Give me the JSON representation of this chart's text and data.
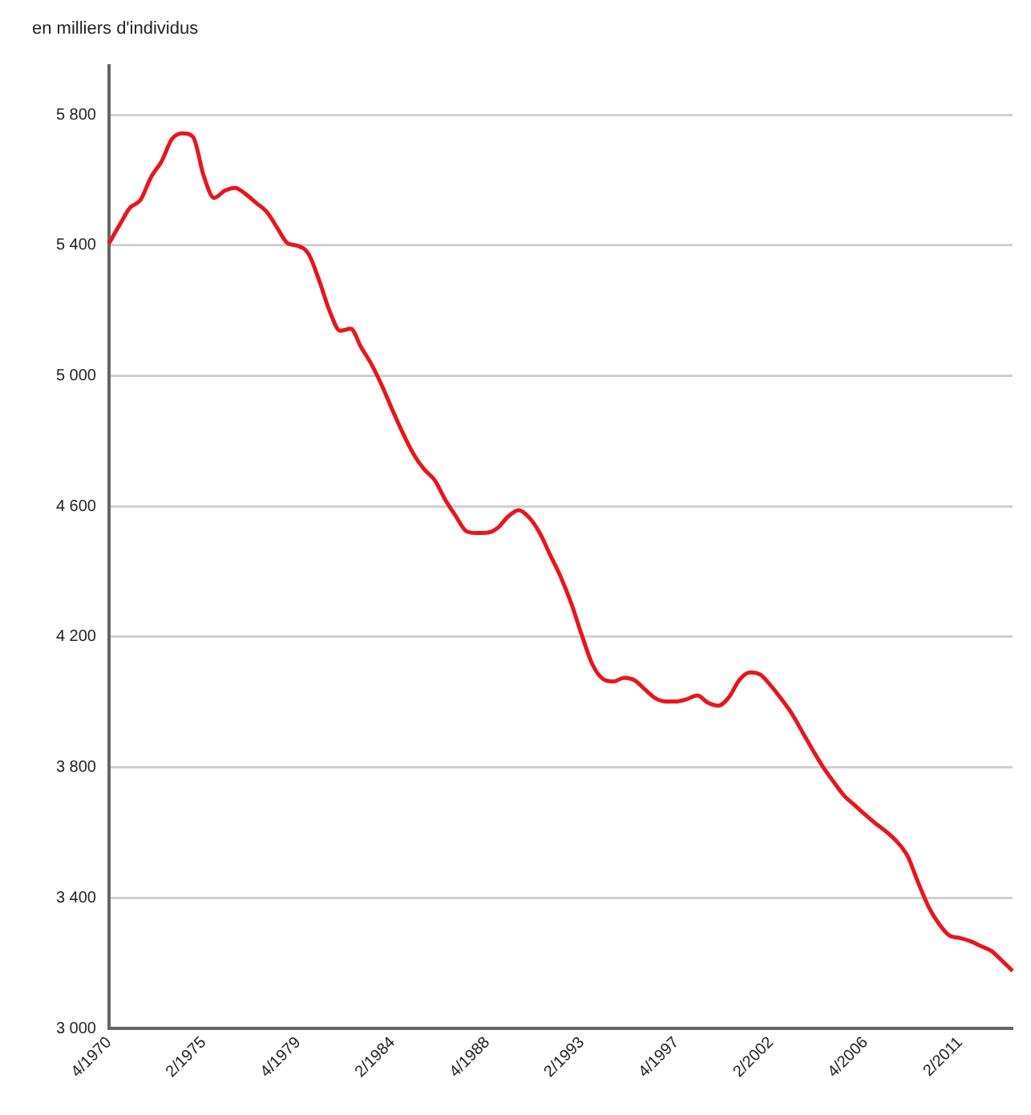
{
  "chart_data": {
    "type": "line",
    "title": "en milliers d'individus",
    "categories": [
      "4/1970",
      null,
      null,
      null,
      null,
      null,
      null,
      null,
      null,
      "2/1975",
      null,
      null,
      null,
      null,
      null,
      null,
      null,
      null,
      "4/1979",
      null,
      null,
      null,
      null,
      null,
      null,
      null,
      null,
      "2/1984",
      null,
      null,
      null,
      null,
      null,
      null,
      null,
      null,
      "4/1988",
      null,
      null,
      null,
      null,
      null,
      null,
      null,
      null,
      "2/1993",
      null,
      null,
      null,
      null,
      null,
      null,
      null,
      null,
      "4/1997",
      null,
      null,
      null,
      null,
      null,
      null,
      null,
      null,
      "2/2002",
      null,
      null,
      null,
      null,
      null,
      null,
      null,
      null,
      "4/2006",
      null,
      null,
      null,
      null,
      null,
      null,
      null,
      null,
      "2/2011",
      null,
      null,
      null,
      null,
      null
    ],
    "series": [
      {
        "color": "#e8161c",
        "values": [
          5406,
          5462,
          5515,
          5539,
          5609,
          5657,
          5726,
          5743,
          5732,
          5614,
          5545,
          5567,
          5576,
          5557,
          5530,
          5503,
          5454,
          5406,
          5398,
          5373,
          5292,
          5198,
          5138,
          5144,
          5087,
          5034,
          4968,
          4893,
          4822,
          4759,
          4713,
          4680,
          4620,
          4570,
          4524,
          4518,
          4519,
          4534,
          4569,
          4588,
          4565,
          4518,
          4450,
          4383,
          4302,
          4205,
          4116,
          4071,
          4063,
          4074,
          4067,
          4039,
          4012,
          4002,
          4002,
          4009,
          4020,
          3998,
          3989,
          4015,
          4068,
          4091,
          4084,
          4050,
          4009,
          3964,
          3908,
          3852,
          3799,
          3754,
          3712,
          3683,
          3654,
          3627,
          3602,
          3572,
          3528,
          3448,
          3373,
          3320,
          3284,
          3277,
          3267,
          3252,
          3237,
          3207,
          3176
        ]
      }
    ],
    "ylim": [
      3000,
      5950
    ],
    "yticks": [
      {
        "value": 3000,
        "label": "3 000"
      },
      {
        "value": 3400,
        "label": "3 400"
      },
      {
        "value": 3800,
        "label": "3 800"
      },
      {
        "value": 4200,
        "label": "4 200"
      },
      {
        "value": 4600,
        "label": "4 600"
      },
      {
        "value": 5000,
        "label": "5 000"
      },
      {
        "value": 5400,
        "label": "5 400"
      },
      {
        "value": 5800,
        "label": "5 800"
      }
    ],
    "grid": "y",
    "legend": false,
    "marker": "none",
    "line_style": "solid"
  }
}
